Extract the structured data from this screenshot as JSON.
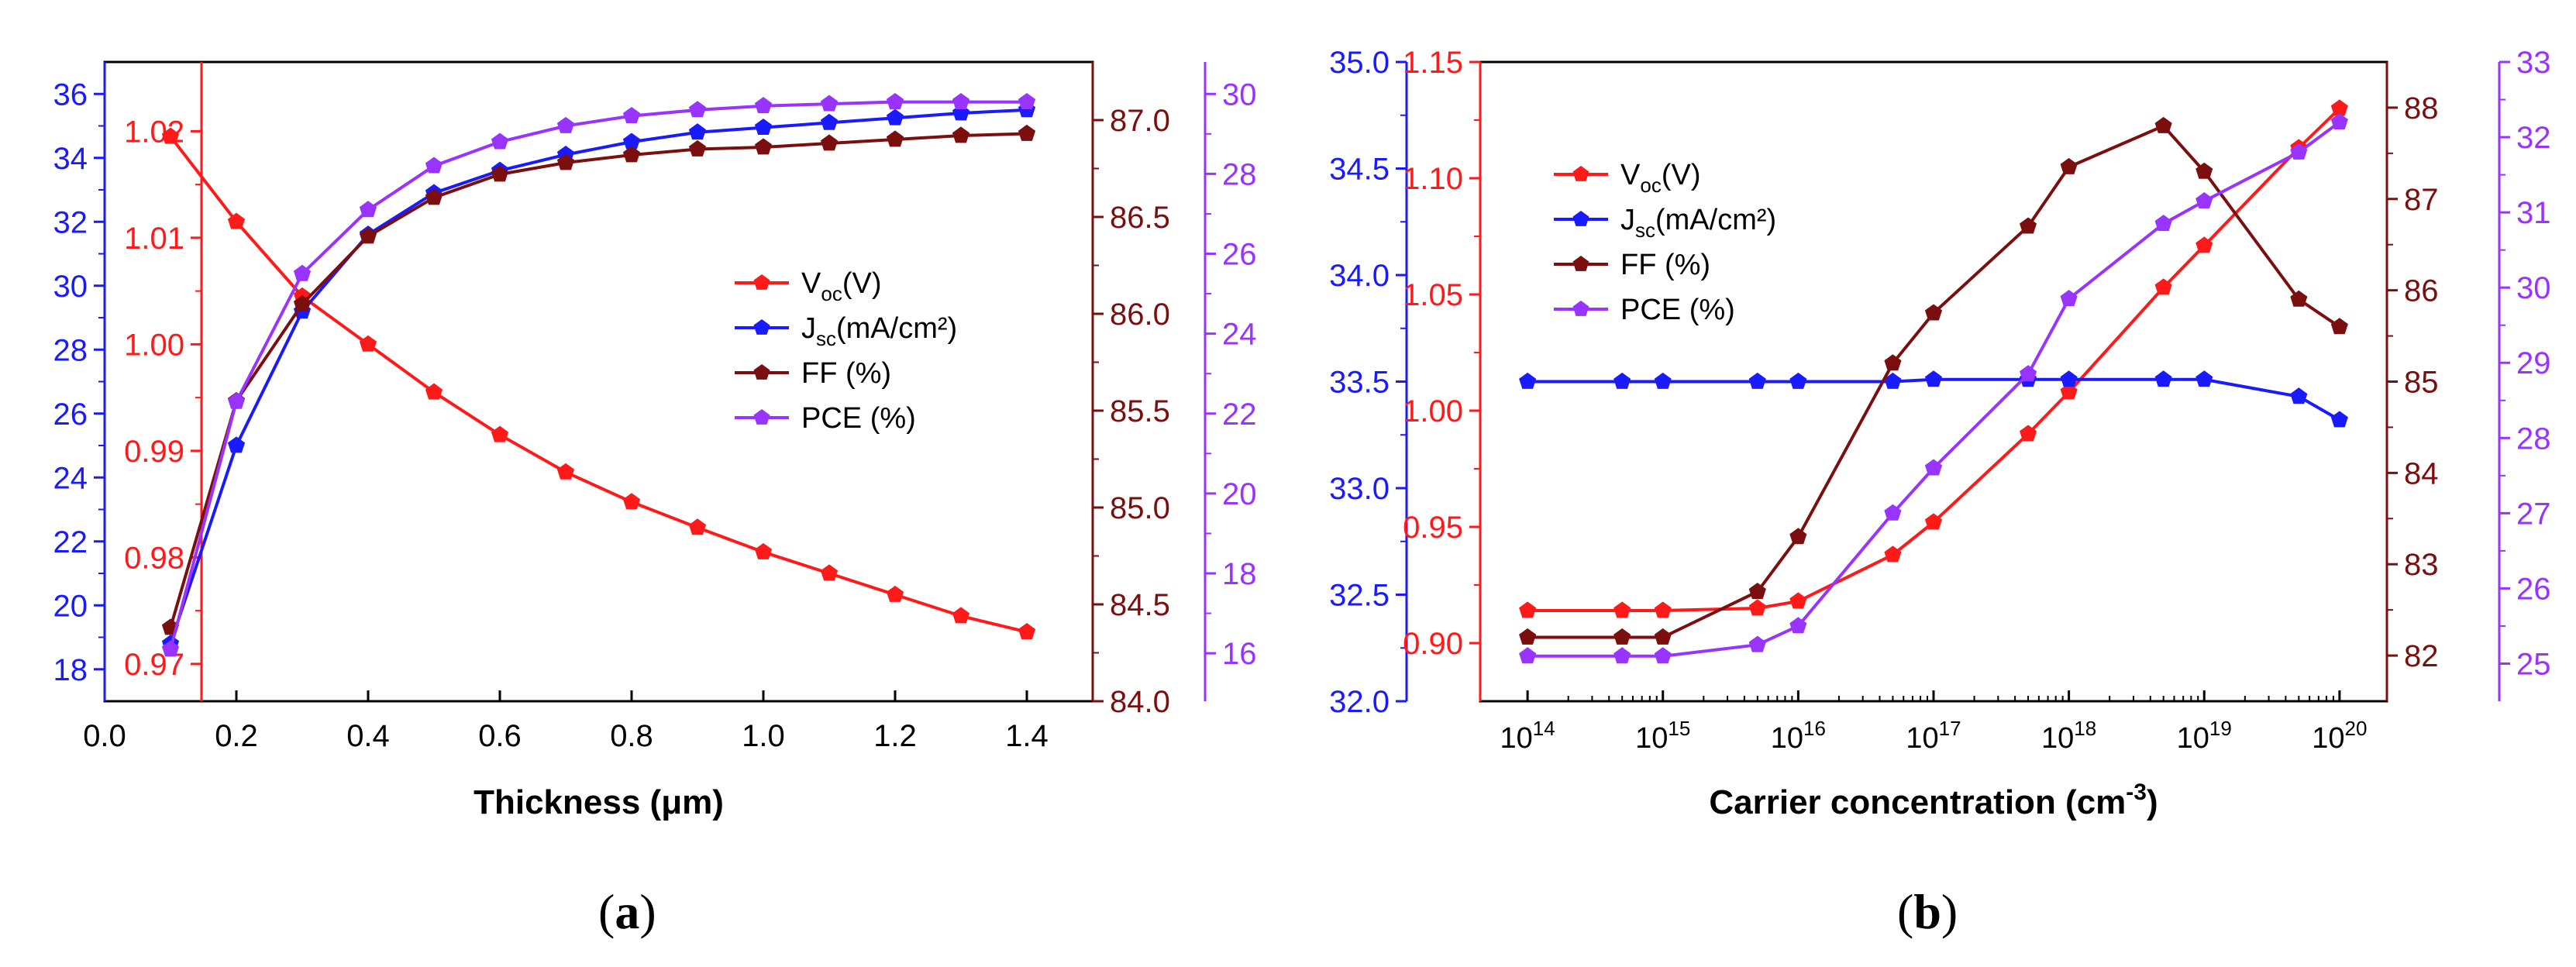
{
  "colors": {
    "voc": "#ff1a1a",
    "jsc": "#1a1aff",
    "ff": "#7b0f0f",
    "pce": "#9933ff",
    "frame": "#000000"
  },
  "chart_data": [
    {
      "type": "line",
      "panel_label": "a",
      "xlabel": "Thickness (μm)",
      "x": [
        0.1,
        0.2,
        0.3,
        0.4,
        0.5,
        0.6,
        0.7,
        0.8,
        0.9,
        1.0,
        1.1,
        1.2,
        1.3,
        1.4
      ],
      "xlim": [
        0.0,
        1.5
      ],
      "xticks": [
        "0.0",
        "0.2",
        "0.4",
        "0.6",
        "0.8",
        "1.0",
        "1.2",
        "1.4"
      ],
      "axes": {
        "jsc": {
          "lim": [
            17.0,
            37.0
          ],
          "ticks": [
            "18",
            "20",
            "22",
            "24",
            "26",
            "28",
            "30",
            "32",
            "34",
            "36"
          ]
        },
        "voc": {
          "lim": [
            0.9665,
            1.0265
          ],
          "ticks": [
            "0.97",
            "0.98",
            "0.99",
            "1.00",
            "1.01",
            "1.02"
          ]
        },
        "ff": {
          "lim": [
            84.0,
            87.3
          ],
          "ticks": [
            "84.0",
            "84.5",
            "85.0",
            "85.5",
            "86.0",
            "86.5",
            "87.0"
          ]
        },
        "pce": {
          "lim": [
            14.8,
            30.8
          ],
          "ticks": [
            "16",
            "18",
            "20",
            "22",
            "24",
            "26",
            "28",
            "30"
          ]
        }
      },
      "legend": {
        "position": "center-right"
      },
      "series": [
        {
          "key": "voc",
          "name": "V",
          "sub": "oc",
          "unit": "(V)",
          "values": [
            1.0195,
            1.0115,
            1.0045,
            1.0,
            0.9955,
            0.9915,
            0.988,
            0.9852,
            0.9828,
            0.9805,
            0.9785,
            0.9765,
            0.9745,
            0.973
          ]
        },
        {
          "key": "jsc",
          "name": "J",
          "sub": "sc",
          "unit": "(mA/cm²)",
          "values": [
            18.8,
            25.0,
            29.2,
            31.6,
            32.9,
            33.6,
            34.1,
            34.5,
            34.8,
            34.95,
            35.1,
            35.25,
            35.4,
            35.5
          ]
        },
        {
          "key": "ff",
          "name": "FF (%)",
          "sub": "",
          "unit": "",
          "values": [
            84.38,
            85.55,
            86.05,
            86.4,
            86.6,
            86.72,
            86.78,
            86.82,
            86.85,
            86.86,
            86.88,
            86.9,
            86.92,
            86.93
          ]
        },
        {
          "key": "pce",
          "name": "PCE (%)",
          "sub": "",
          "unit": "",
          "values": [
            16.1,
            22.3,
            25.5,
            27.1,
            28.2,
            28.8,
            29.2,
            29.45,
            29.6,
            29.7,
            29.75,
            29.8,
            29.8,
            29.8
          ]
        }
      ]
    },
    {
      "type": "line",
      "panel_label": "b",
      "xlabel": "Carrier concentration (cm",
      "xlabel_sup": "-3",
      "xlabel_tail": ")",
      "xscale": "log",
      "x": [
        100000000000000.0,
        500000000000000.0,
        1000000000000000.0,
        5000000000000000.0,
        1e+16,
        5e+16,
        1e+17,
        5e+17,
        1e+18,
        5e+18,
        1e+19,
        5e+19,
        1e+20
      ],
      "xlim_log10": [
        13.65,
        20.35
      ],
      "xticks": [
        {
          "base": "10",
          "exp": "14"
        },
        {
          "base": "10",
          "exp": "15"
        },
        {
          "base": "10",
          "exp": "16"
        },
        {
          "base": "10",
          "exp": "17"
        },
        {
          "base": "10",
          "exp": "18"
        },
        {
          "base": "10",
          "exp": "19"
        },
        {
          "base": "10",
          "exp": "20"
        }
      ],
      "axes": {
        "jsc": {
          "lim": [
            32.0,
            35.0
          ],
          "ticks": [
            "32.0",
            "32.5",
            "33.0",
            "33.5",
            "34.0",
            "34.5",
            "35.0"
          ]
        },
        "voc": {
          "lim": [
            0.875,
            1.15
          ],
          "ticks": [
            "0.90",
            "0.95",
            "1.00",
            "1.05",
            "1.10",
            "1.15"
          ]
        },
        "ff": {
          "lim": [
            81.5,
            88.5
          ],
          "ticks": [
            "82",
            "83",
            "84",
            "85",
            "86",
            "87",
            "88"
          ]
        },
        "pce": {
          "lim": [
            24.5,
            33.0
          ],
          "ticks": [
            "25",
            "26",
            "27",
            "28",
            "29",
            "30",
            "31",
            "32",
            "33"
          ]
        }
      },
      "legend": {
        "position": "top-left"
      },
      "series": [
        {
          "key": "voc",
          "name": "V",
          "sub": "oc",
          "unit": "(V)",
          "values": [
            0.914,
            0.914,
            0.914,
            0.915,
            0.918,
            0.938,
            0.952,
            0.99,
            1.008,
            1.053,
            1.071,
            1.113,
            1.13
          ]
        },
        {
          "key": "jsc",
          "name": "J",
          "sub": "sc",
          "unit": "(mA/cm²)",
          "values": [
            33.5,
            33.5,
            33.5,
            33.5,
            33.5,
            33.5,
            33.51,
            33.51,
            33.51,
            33.51,
            33.51,
            33.43,
            33.32
          ]
        },
        {
          "key": "ff",
          "name": "FF (%)",
          "sub": "",
          "unit": "",
          "values": [
            82.2,
            82.2,
            82.2,
            82.7,
            83.3,
            85.2,
            85.75,
            86.7,
            87.35,
            87.8,
            87.3,
            85.9,
            85.6
          ]
        },
        {
          "key": "pce",
          "name": "PCE (%)",
          "sub": "",
          "unit": "",
          "values": [
            25.1,
            25.1,
            25.1,
            25.25,
            25.5,
            27.0,
            27.6,
            28.85,
            29.85,
            30.85,
            31.15,
            31.8,
            32.2
          ]
        }
      ]
    }
  ],
  "captions": {
    "a": "a",
    "b": "b"
  }
}
